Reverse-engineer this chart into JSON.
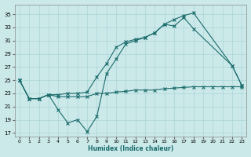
{
  "xlabel": "Humidex (Indice chaleur)",
  "xlim": [
    -0.5,
    23.5
  ],
  "ylim": [
    16.5,
    36.5
  ],
  "yticks": [
    17,
    19,
    21,
    23,
    25,
    27,
    29,
    31,
    33,
    35
  ],
  "xticks": [
    0,
    1,
    2,
    3,
    4,
    5,
    6,
    7,
    8,
    9,
    10,
    11,
    12,
    13,
    14,
    15,
    16,
    17,
    18,
    19,
    20,
    21,
    22,
    23
  ],
  "bg_color": "#cce9ea",
  "grid_color": "#aad4d6",
  "line_color": "#1a6b6b",
  "line_upper_x": [
    0,
    1,
    2,
    3,
    4,
    5,
    6,
    7,
    8,
    9,
    10,
    11,
    12,
    13,
    14,
    15,
    16,
    17,
    18,
    22,
    23
  ],
  "line_upper_y": [
    25,
    22.2,
    22.2,
    22.8,
    22.8,
    23.0,
    23.0,
    23.2,
    25.5,
    27.5,
    30.0,
    30.8,
    31.2,
    31.5,
    32.2,
    33.5,
    34.2,
    34.8,
    35.2,
    27.2,
    24.2
  ],
  "line_zigzag_x": [
    0,
    1,
    2,
    3,
    4,
    5,
    6,
    7,
    8,
    9,
    10,
    11,
    12,
    13,
    14,
    15,
    16,
    17,
    18,
    22,
    23
  ],
  "line_zigzag_y": [
    25,
    22.2,
    22.2,
    22.8,
    20.5,
    18.5,
    19.0,
    17.2,
    19.5,
    26.0,
    28.2,
    30.5,
    31.0,
    31.5,
    32.2,
    33.5,
    33.2,
    34.5,
    32.8,
    27.2,
    24.2
  ],
  "line_flat_x": [
    0,
    1,
    2,
    3,
    4,
    5,
    6,
    7,
    8,
    9,
    10,
    11,
    12,
    13,
    14,
    15,
    16,
    17,
    18,
    19,
    20,
    21,
    22,
    23
  ],
  "line_flat_y": [
    25,
    22.2,
    22.2,
    22.8,
    22.5,
    22.5,
    22.5,
    22.5,
    23.0,
    23.0,
    23.2,
    23.3,
    23.5,
    23.5,
    23.5,
    23.7,
    23.8,
    23.9,
    24.0,
    24.0,
    24.0,
    24.0,
    24.0,
    24.0
  ]
}
